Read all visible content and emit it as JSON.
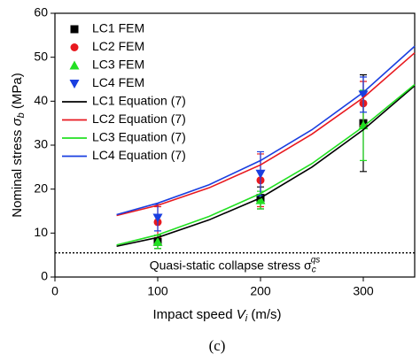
{
  "chart_data": {
    "type": "line",
    "x_label": [
      "Impact speed ",
      "V",
      "i",
      " (m/s)"
    ],
    "y_label": [
      "Nominal stress ",
      "σ",
      "b",
      " (MPa)"
    ],
    "caption": "(c)",
    "xlim": [
      0,
      350
    ],
    "xticks": [
      0,
      100,
      200,
      300
    ],
    "ylim": [
      0,
      60
    ],
    "yticks": [
      0,
      10,
      20,
      30,
      40,
      50,
      60
    ],
    "legend": "upper left",
    "series": [
      {
        "name": "LC1 FEM",
        "style": "markers",
        "marker": "square",
        "color": "#000000",
        "x": [
          100,
          200,
          300
        ],
        "values": [
          8,
          18,
          35
        ],
        "errors": [
          1.5,
          2.5,
          11
        ]
      },
      {
        "name": "LC2 FEM",
        "style": "markers",
        "marker": "circle",
        "color": "#e8191f",
        "x": [
          100,
          200,
          300
        ],
        "values": [
          12.5,
          22,
          39.5
        ],
        "errors": [
          3.5,
          6,
          5
        ]
      },
      {
        "name": "LC3 FEM",
        "style": "markers",
        "marker": "triangle-up",
        "color": "#22e022",
        "x": [
          100,
          200,
          300
        ],
        "values": [
          8,
          17.5,
          34.5
        ],
        "errors": [
          1.5,
          2,
          8
        ]
      },
      {
        "name": "LC4 FEM",
        "style": "markers",
        "marker": "triangle-down",
        "color": "#1a3fe0",
        "x": [
          100,
          200,
          300
        ],
        "values": [
          13.5,
          23.5,
          41.5
        ],
        "errors": [
          3,
          5,
          4
        ]
      },
      {
        "name": "LC1 Equation (7)",
        "style": "line",
        "color": "#000000",
        "x": [
          60,
          100,
          150,
          200,
          250,
          300,
          350
        ],
        "values": [
          7,
          9,
          13,
          18,
          25,
          33.5,
          43.5
        ]
      },
      {
        "name": "LC2 Equation (7)",
        "style": "line",
        "color": "#e8191f",
        "x": [
          60,
          100,
          150,
          200,
          250,
          300,
          350
        ],
        "values": [
          14,
          16.3,
          20.3,
          25.5,
          32.5,
          40.8,
          51
        ]
      },
      {
        "name": "LC3 Equation (7)",
        "style": "line",
        "color": "#22e022",
        "x": [
          60,
          100,
          150,
          200,
          250,
          300,
          350
        ],
        "values": [
          7.3,
          9.6,
          13.8,
          19,
          25.8,
          34.2,
          43.8
        ]
      },
      {
        "name": "LC4 Equation (7)",
        "style": "line",
        "color": "#1a3fe0",
        "x": [
          60,
          100,
          150,
          200,
          250,
          300,
          350
        ],
        "values": [
          14.2,
          16.8,
          21,
          26.5,
          33.5,
          42,
          52.5
        ]
      }
    ],
    "reference_line": {
      "value": 5.5,
      "label": [
        "Quasi-static collapse stress σ",
        "c",
        "qs"
      ]
    }
  }
}
